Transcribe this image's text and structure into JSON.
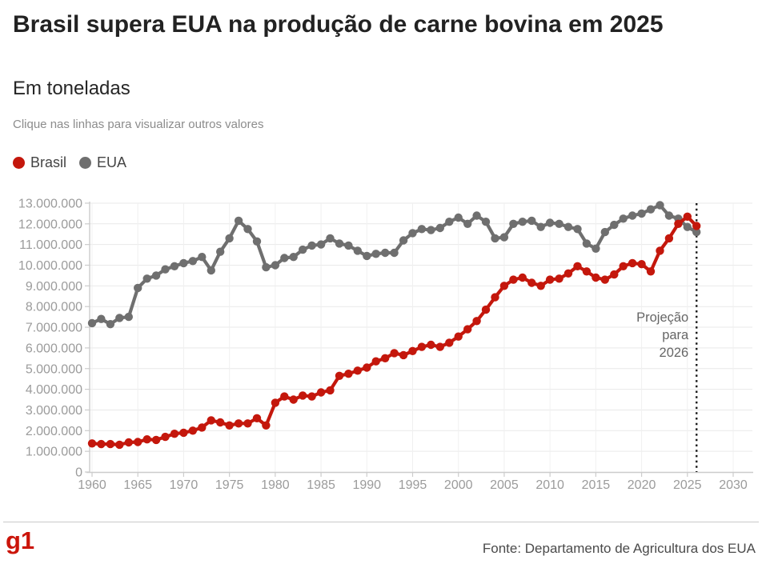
{
  "header": {
    "title": "Brasil supera EUA na produção de carne bovina em 2025",
    "subtitle": "Em toneladas",
    "note": "Clique nas linhas para visualizar outros valores"
  },
  "legend": {
    "items": [
      {
        "label": "Brasil",
        "color": "#c4170c"
      },
      {
        "label": "EUA",
        "color": "#6f6f6f"
      }
    ]
  },
  "footer": {
    "logo": "g1",
    "source": "Fonte: Departamento de Agricultura dos EUA"
  },
  "colors": {
    "brasil": "#c4170c",
    "eua": "#6f6f6f",
    "axis": "#cccccc",
    "grid_h": "#e9e9e9",
    "grid_v": "#f0f0f0",
    "tick_text": "#9b9b9b",
    "annotation_text": "#666666",
    "projection_line": "#1a1a1a"
  },
  "chart_data": {
    "type": "line",
    "title": "Brasil supera EUA na produção de carne bovina em 2025",
    "ylabel": "Em toneladas",
    "xlabel": "",
    "grid": true,
    "legend_position": "top-left",
    "xlim": [
      1960,
      2030
    ],
    "ylim": [
      0,
      13000000
    ],
    "x_ticks": [
      1960,
      1965,
      1970,
      1975,
      1980,
      1985,
      1990,
      1995,
      2000,
      2005,
      2010,
      2015,
      2020,
      2025,
      2030
    ],
    "y_ticks": [
      0,
      1000000,
      2000000,
      3000000,
      4000000,
      5000000,
      6000000,
      7000000,
      8000000,
      9000000,
      10000000,
      11000000,
      12000000,
      13000000
    ],
    "y_tick_labels": [
      "0",
      "1.000.000",
      "2.000.000",
      "3.000.000",
      "4.000.000",
      "5.000.000",
      "6.000.000",
      "7.000.000",
      "8.000.000",
      "9.000.000",
      "10.000.000",
      "11.000.000",
      "12.000.000",
      "13.000.000"
    ],
    "projection": {
      "x": 2026,
      "label": "Projeção para 2026",
      "label_lines": [
        "Projeção",
        "para",
        "2026"
      ]
    },
    "x": [
      1960,
      1961,
      1962,
      1963,
      1964,
      1965,
      1966,
      1967,
      1968,
      1969,
      1970,
      1971,
      1972,
      1973,
      1974,
      1975,
      1976,
      1977,
      1978,
      1979,
      1980,
      1981,
      1982,
      1983,
      1984,
      1985,
      1986,
      1987,
      1988,
      1989,
      1990,
      1991,
      1992,
      1993,
      1994,
      1995,
      1996,
      1997,
      1998,
      1999,
      2000,
      2001,
      2002,
      2003,
      2004,
      2005,
      2006,
      2007,
      2008,
      2009,
      2010,
      2011,
      2012,
      2013,
      2014,
      2015,
      2016,
      2017,
      2018,
      2019,
      2020,
      2021,
      2022,
      2023,
      2024,
      2025,
      2026
    ],
    "series": [
      {
        "name": "Brasil",
        "color": "#c4170c",
        "values": [
          1380000,
          1350000,
          1350000,
          1320000,
          1430000,
          1450000,
          1580000,
          1550000,
          1700000,
          1850000,
          1900000,
          2000000,
          2150000,
          2500000,
          2400000,
          2250000,
          2350000,
          2350000,
          2600000,
          2250000,
          3350000,
          3650000,
          3500000,
          3700000,
          3650000,
          3850000,
          3950000,
          4650000,
          4750000,
          4900000,
          5050000,
          5350000,
          5500000,
          5750000,
          5650000,
          5850000,
          6050000,
          6150000,
          6050000,
          6250000,
          6550000,
          6900000,
          7300000,
          7850000,
          8450000,
          9000000,
          9300000,
          9400000,
          9150000,
          9000000,
          9300000,
          9350000,
          9600000,
          9950000,
          9700000,
          9400000,
          9300000,
          9550000,
          9950000,
          10100000,
          10050000,
          9700000,
          10700000,
          11300000,
          12000000,
          12350000,
          11900000
        ]
      },
      {
        "name": "EUA",
        "color": "#6f6f6f",
        "values": [
          7200000,
          7400000,
          7150000,
          7450000,
          7500000,
          8900000,
          9350000,
          9500000,
          9800000,
          9950000,
          10100000,
          10200000,
          10400000,
          9750000,
          10650000,
          11300000,
          12150000,
          11750000,
          11150000,
          9900000,
          10000000,
          10350000,
          10400000,
          10750000,
          10950000,
          11000000,
          11300000,
          11050000,
          10950000,
          10700000,
          10450000,
          10550000,
          10600000,
          10600000,
          11200000,
          11550000,
          11750000,
          11700000,
          11800000,
          12100000,
          12300000,
          12000000,
          12400000,
          12100000,
          11300000,
          11350000,
          12000000,
          12100000,
          12150000,
          11850000,
          12050000,
          12000000,
          11850000,
          11750000,
          11050000,
          10800000,
          11600000,
          11950000,
          12250000,
          12400000,
          12500000,
          12700000,
          12900000,
          12400000,
          12250000,
          11850000,
          11600000
        ]
      }
    ]
  }
}
